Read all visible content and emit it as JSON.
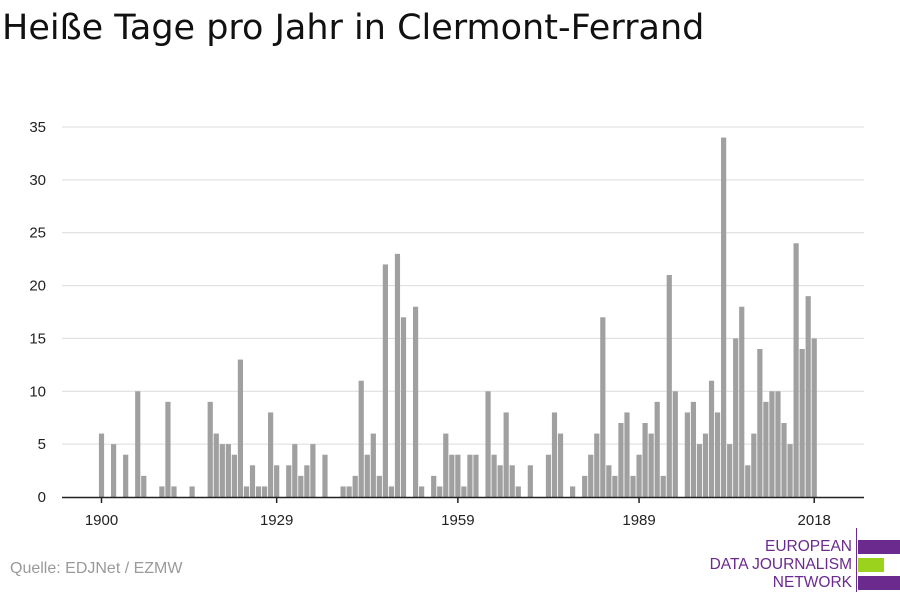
{
  "title": "Heiße Tage pro Jahr in Clermont-Ferrand",
  "source": "Quelle: EDJNet / EZMW",
  "logo": {
    "lines": [
      "EUROPEAN",
      "DATA JOURNALISM",
      "NETWORK"
    ],
    "colors": {
      "purple": "#6a2a8e",
      "green": "#9bd21e"
    }
  },
  "colors": {
    "bar": "#a0a0a0",
    "grid": "#dcdcdc",
    "axis": "#222222",
    "text": "#222222"
  },
  "chart_data": {
    "type": "bar",
    "title": "Heiße Tage pro Jahr in Clermont-Ferrand",
    "xlabel": "",
    "ylabel": "",
    "ylim": [
      0,
      35
    ],
    "yticks": [
      0,
      5,
      10,
      15,
      20,
      25,
      30,
      35
    ],
    "xticks": [
      1900,
      1929,
      1959,
      1989,
      2018
    ],
    "grid": true,
    "x": [
      1900,
      1901,
      1902,
      1903,
      1904,
      1905,
      1906,
      1907,
      1908,
      1909,
      1910,
      1911,
      1912,
      1913,
      1914,
      1915,
      1916,
      1917,
      1918,
      1919,
      1920,
      1921,
      1922,
      1923,
      1924,
      1925,
      1926,
      1927,
      1928,
      1929,
      1930,
      1931,
      1932,
      1933,
      1934,
      1935,
      1936,
      1937,
      1938,
      1939,
      1940,
      1941,
      1942,
      1943,
      1944,
      1945,
      1946,
      1947,
      1948,
      1949,
      1950,
      1951,
      1952,
      1953,
      1954,
      1955,
      1956,
      1957,
      1958,
      1959,
      1960,
      1961,
      1962,
      1963,
      1964,
      1965,
      1966,
      1967,
      1968,
      1969,
      1970,
      1971,
      1972,
      1973,
      1974,
      1975,
      1976,
      1977,
      1978,
      1979,
      1980,
      1981,
      1982,
      1983,
      1984,
      1985,
      1986,
      1987,
      1988,
      1989,
      1990,
      1991,
      1992,
      1993,
      1994,
      1995,
      1996,
      1997,
      1998,
      1999,
      2000,
      2001,
      2002,
      2003,
      2004,
      2005,
      2006,
      2007,
      2008,
      2009,
      2010,
      2011,
      2012,
      2013,
      2014,
      2015,
      2016,
      2017,
      2018
    ],
    "values": [
      6,
      0,
      5,
      0,
      4,
      0,
      10,
      2,
      0,
      0,
      1,
      9,
      1,
      0,
      0,
      1,
      0,
      0,
      9,
      6,
      5,
      5,
      4,
      13,
      1,
      3,
      1,
      1,
      8,
      3,
      0,
      3,
      5,
      2,
      3,
      5,
      0,
      4,
      0,
      0,
      1,
      1,
      2,
      11,
      4,
      6,
      2,
      22,
      1,
      23,
      17,
      0,
      18,
      1,
      0,
      2,
      1,
      6,
      4,
      4,
      1,
      4,
      4,
      0,
      10,
      4,
      3,
      8,
      3,
      1,
      0,
      3,
      0,
      0,
      4,
      8,
      6,
      0,
      1,
      0,
      2,
      4,
      6,
      17,
      3,
      2,
      7,
      8,
      2,
      4,
      7,
      6,
      9,
      2,
      21,
      10,
      0,
      8,
      9,
      5,
      6,
      11,
      8,
      34,
      5,
      15,
      18,
      3,
      6,
      14,
      9,
      10,
      10,
      7,
      5,
      24,
      14,
      19,
      15
    ]
  }
}
